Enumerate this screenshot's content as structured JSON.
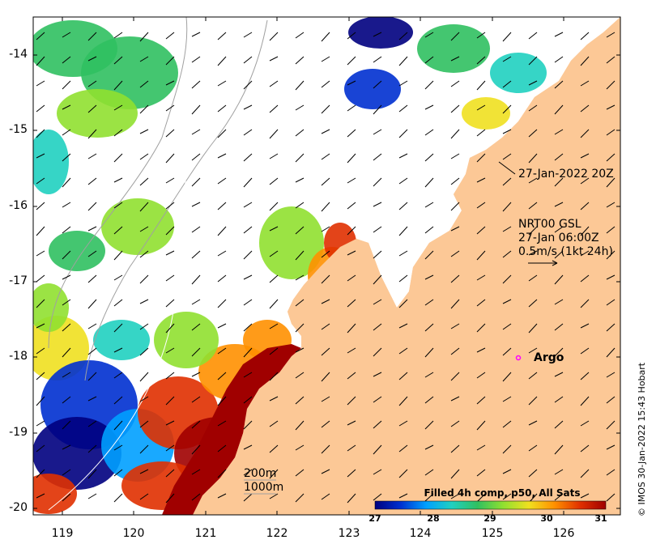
{
  "map": {
    "x_ticks": [
      "119",
      "120",
      "121",
      "122",
      "123",
      "124",
      "125",
      "126"
    ],
    "y_ticks": [
      "-14",
      "-15",
      "-16",
      "-17",
      "-18",
      "-19",
      "-20"
    ],
    "colors": {
      "land": "#fcc896",
      "no_data": "#ffffff",
      "contour": "#a0a0a0",
      "argo_marker": "#ff00ff"
    }
  },
  "annotations": {
    "track_time": "27-Jan-2022 20Z",
    "current_product": "NRT00 GSL",
    "current_time": "27-Jan 06:00Z",
    "current_scale": "0.5m/s (1kt 24h)",
    "argo_label": "Argo",
    "contour_200": "200m",
    "contour_1000": "1000m",
    "copyright": "© IMOS 30-Jan-2022 15:43 Hobart"
  },
  "colorbar": {
    "title": "Filled 4h comp, p50, All Sats",
    "ticks": [
      "27",
      "28",
      "29",
      "30",
      "31"
    ],
    "stops": [
      "#00007f",
      "#0030d0",
      "#00a0ff",
      "#20d0c0",
      "#30c060",
      "#90e030",
      "#f0e020",
      "#ff9000",
      "#e03000",
      "#a00000"
    ]
  }
}
